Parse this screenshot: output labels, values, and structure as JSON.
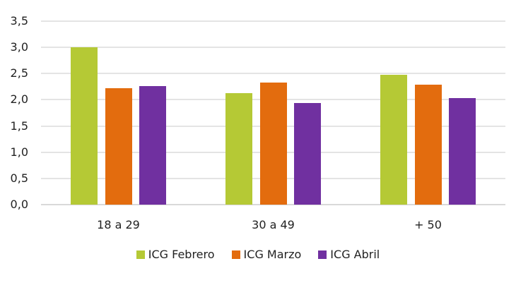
{
  "chart_data": {
    "type": "bar",
    "title": "",
    "xlabel": "",
    "ylabel": "",
    "ylim": [
      0,
      3.5
    ],
    "yticks": [
      "0,0",
      "0,5",
      "1,0",
      "1,5",
      "2,0",
      "2,5",
      "3,0",
      "3,5"
    ],
    "grid": true,
    "legend_position": "bottom",
    "categories": [
      "18 a 29",
      "30 a 49",
      "+ 50"
    ],
    "series": [
      {
        "name": "ICG Febrero",
        "color": "#B5C935",
        "values": [
          3.0,
          2.13,
          2.47
        ]
      },
      {
        "name": "ICG Marzo",
        "color": "#E36C0E",
        "values": [
          2.22,
          2.33,
          2.29
        ]
      },
      {
        "name": "ICG Abril",
        "color": "#7030A0",
        "values": [
          2.26,
          1.94,
          2.03
        ]
      }
    ]
  }
}
